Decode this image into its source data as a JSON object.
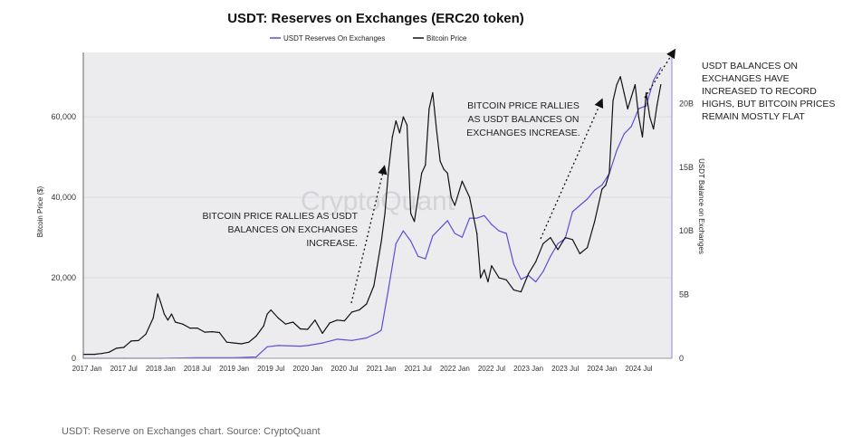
{
  "chart_data": {
    "type": "line",
    "title": "USDT: Reserves on Exchanges (ERC20 token)",
    "ylabel_left": "Bitcoin Price ($)",
    "ylabel_right": "USDT Balance on Exchanges",
    "watermark": "CryptoQuant",
    "legend_position": "top-center",
    "grid": true,
    "x_ticks": [
      "2017 Jan",
      "2017 Jul",
      "2018 Jan",
      "2018 Jul",
      "2019 Jan",
      "2019 Jul",
      "2020 Jan",
      "2020 Jul",
      "2021 Jan",
      "2021 Jul",
      "2022 Jan",
      "2022 Jul",
      "2023 Jan",
      "2023 Jul",
      "2024 Jan",
      "2024 Jul"
    ],
    "x_range": [
      "2016-12",
      "2024-12"
    ],
    "left_axis": {
      "ticks": [
        0,
        20000,
        40000,
        60000
      ],
      "tick_labels": [
        "0",
        "20,000",
        "40,000",
        "60,000"
      ],
      "range": [
        0,
        76000
      ]
    },
    "right_axis": {
      "ticks": [
        0,
        5,
        10,
        15,
        20
      ],
      "tick_labels": [
        "0",
        "5B",
        "10B",
        "15B",
        "20B"
      ],
      "range": [
        0,
        24
      ],
      "unit": "B"
    },
    "series": [
      {
        "name": "USDT Reserves On Exchanges",
        "axis": "right",
        "color": "#5b4fd6",
        "x": [
          2016.95,
          2017.5,
          2018.0,
          2018.5,
          2019.0,
          2019.3,
          2019.45,
          2019.6,
          2019.9,
          2020.0,
          2020.2,
          2020.4,
          2020.6,
          2020.8,
          2020.95,
          2021.0,
          2021.1,
          2021.2,
          2021.3,
          2021.4,
          2021.5,
          2021.6,
          2021.7,
          2021.8,
          2021.9,
          2022.0,
          2022.1,
          2022.2,
          2022.3,
          2022.4,
          2022.5,
          2022.6,
          2022.7,
          2022.8,
          2022.9,
          2023.0,
          2023.1,
          2023.2,
          2023.3,
          2023.4,
          2023.5,
          2023.6,
          2023.7,
          2023.8,
          2023.9,
          2024.0,
          2024.1,
          2024.2,
          2024.3,
          2024.4,
          2024.5,
          2024.6,
          2024.7,
          2024.8
        ],
        "values": [
          0,
          0,
          0,
          0.05,
          0.05,
          0.1,
          0.9,
          1.0,
          0.95,
          1.0,
          1.2,
          1.5,
          1.4,
          1.6,
          2.0,
          2.2,
          5.5,
          9.0,
          10.0,
          9.2,
          8.0,
          7.8,
          9.6,
          10.2,
          10.8,
          9.8,
          9.5,
          11.0,
          11.0,
          11.2,
          10.5,
          10.0,
          9.8,
          7.4,
          6.2,
          6.5,
          6.0,
          6.8,
          8.0,
          9.0,
          9.4,
          11.5,
          12.0,
          12.5,
          13.2,
          13.6,
          14.5,
          16.3,
          17.6,
          18.2,
          19.6,
          19.8,
          21.8,
          22.8
        ]
      },
      {
        "name": "Bitcoin Price",
        "axis": "left",
        "color": "#111111",
        "x": [
          2016.95,
          2017.1,
          2017.2,
          2017.3,
          2017.4,
          2017.5,
          2017.6,
          2017.7,
          2017.8,
          2017.9,
          2017.96,
          2018.0,
          2018.05,
          2018.1,
          2018.15,
          2018.2,
          2018.3,
          2018.4,
          2018.5,
          2018.6,
          2018.7,
          2018.8,
          2018.9,
          2019.0,
          2019.1,
          2019.2,
          2019.3,
          2019.4,
          2019.45,
          2019.5,
          2019.6,
          2019.7,
          2019.8,
          2019.9,
          2020.0,
          2020.1,
          2020.2,
          2020.3,
          2020.4,
          2020.5,
          2020.6,
          2020.7,
          2020.8,
          2020.9,
          2021.0,
          2021.05,
          2021.1,
          2021.15,
          2021.2,
          2021.25,
          2021.3,
          2021.35,
          2021.4,
          2021.45,
          2021.5,
          2021.55,
          2021.6,
          2021.65,
          2021.7,
          2021.75,
          2021.8,
          2021.85,
          2021.9,
          2021.95,
          2022.0,
          2022.1,
          2022.2,
          2022.3,
          2022.35,
          2022.4,
          2022.45,
          2022.5,
          2022.6,
          2022.7,
          2022.8,
          2022.9,
          2023.0,
          2023.1,
          2023.2,
          2023.3,
          2023.4,
          2023.5,
          2023.6,
          2023.7,
          2023.8,
          2023.9,
          2024.0,
          2024.05,
          2024.1,
          2024.15,
          2024.2,
          2024.25,
          2024.3,
          2024.35,
          2024.4,
          2024.45,
          2024.5,
          2024.55,
          2024.6,
          2024.65,
          2024.7,
          2024.75,
          2024.8
        ],
        "values": [
          1000,
          1000,
          1200,
          1500,
          2500,
          2700,
          4300,
          4400,
          6000,
          10000,
          16000,
          14000,
          11000,
          9500,
          11000,
          9000,
          8500,
          7500,
          7500,
          6500,
          6600,
          6400,
          4000,
          3800,
          3600,
          4000,
          5500,
          8000,
          11000,
          12000,
          10000,
          8500,
          9000,
          7300,
          7200,
          9500,
          6200,
          8800,
          9500,
          9300,
          11500,
          12000,
          13500,
          18000,
          29000,
          36000,
          47000,
          55000,
          59000,
          56000,
          60000,
          58000,
          36000,
          34000,
          40000,
          46000,
          48000,
          62000,
          66000,
          57000,
          49000,
          47000,
          46000,
          40000,
          38000,
          44000,
          40000,
          31000,
          20000,
          22000,
          19000,
          23000,
          20000,
          19500,
          17000,
          16500,
          21000,
          24000,
          28500,
          30000,
          27000,
          30000,
          29500,
          26000,
          27500,
          34000,
          42000,
          43000,
          46000,
          64000,
          68000,
          70000,
          66000,
          62000,
          65000,
          68000,
          60000,
          55000,
          66000,
          60000,
          57000,
          63000,
          68000
        ]
      }
    ],
    "annotations": [
      {
        "lines": [
          "BITCOIN PRICE RALLIES AS USDT",
          "BALANCES ON EXCHANGES",
          "INCREASE."
        ]
      },
      {
        "lines": [
          "BITCOIN PRICE RALLIES",
          "AS USDT BALANCES ON",
          "EXCHANGES INCREASE."
        ]
      },
      {
        "lines": [
          "USDT BALANCES ON",
          "EXCHANGES HAVE",
          "INCREASED TO RECORD",
          "HIGHS, BUT BITCOIN PRICES",
          "REMAIN MOSTLY FLAT"
        ]
      }
    ]
  },
  "caption": "USDT: Reserve on Exchanges chart. Source: CryptoQuant"
}
